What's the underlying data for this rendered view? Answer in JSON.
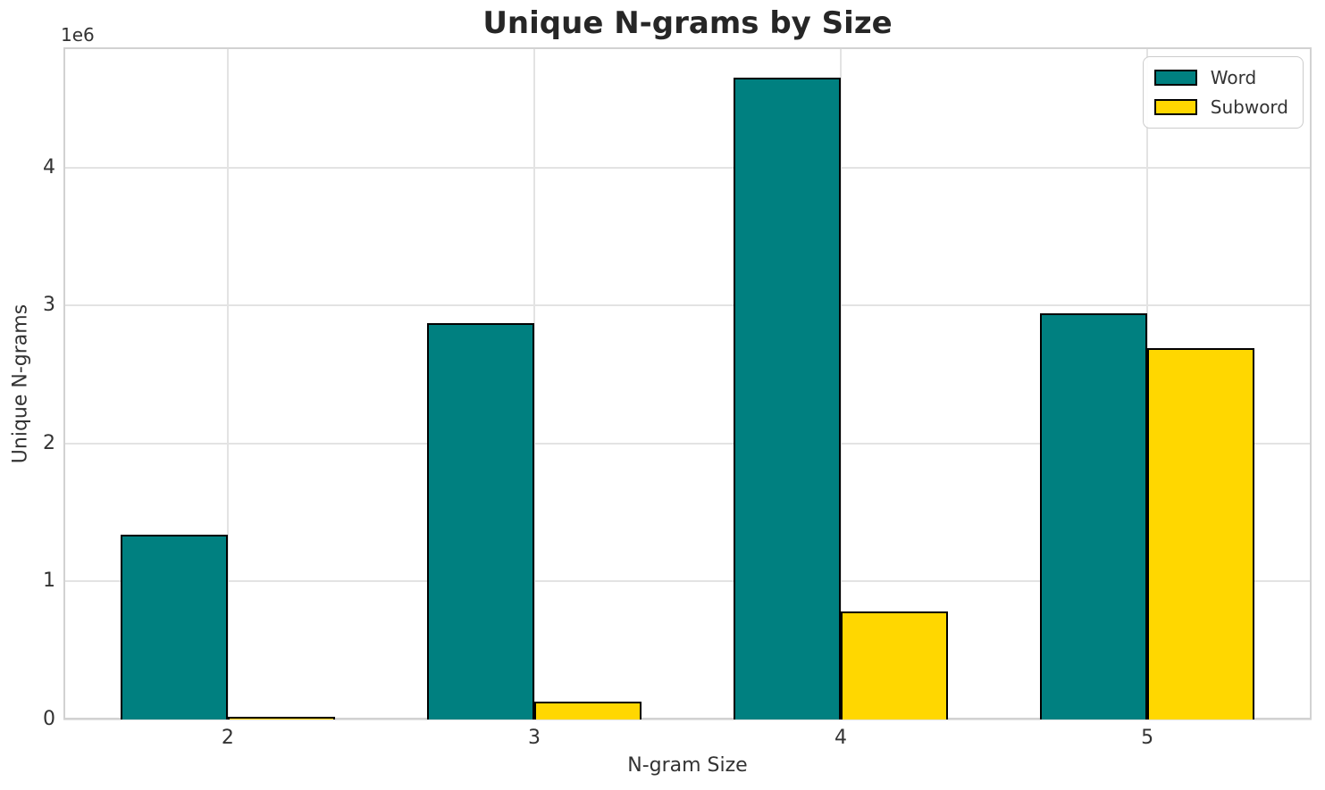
{
  "figure": {
    "background": "#ffffff"
  },
  "chart_data": {
    "type": "bar",
    "title": "Unique N-grams by Size",
    "xlabel": "N-gram Size",
    "ylabel": "Unique N-grams",
    "y_offset_label": "1e6",
    "categories": [
      "2",
      "3",
      "4",
      "5"
    ],
    "series": [
      {
        "name": "Word",
        "color": "#008080",
        "values": [
          1340000,
          2870000,
          4650000,
          2940000
        ]
      },
      {
        "name": "Subword",
        "color": "#FFD700",
        "values": [
          20000,
          130000,
          780000,
          2690000
        ]
      }
    ],
    "bar_width": 0.35,
    "bar_edge_color": "#000000",
    "xlim": [
      -0.536,
      3.536
    ],
    "ylim": [
      0,
      4870000
    ],
    "yticks": [
      0,
      1000000,
      2000000,
      3000000,
      4000000
    ],
    "ytick_labels": [
      "0",
      "1",
      "2",
      "3",
      "4"
    ],
    "grid": true,
    "grid_color": "#e3e3e3",
    "spine_color": "#d2d2d2",
    "legend": {
      "position": "upper right"
    },
    "title_color": "#262626",
    "text_color": "#333333"
  }
}
